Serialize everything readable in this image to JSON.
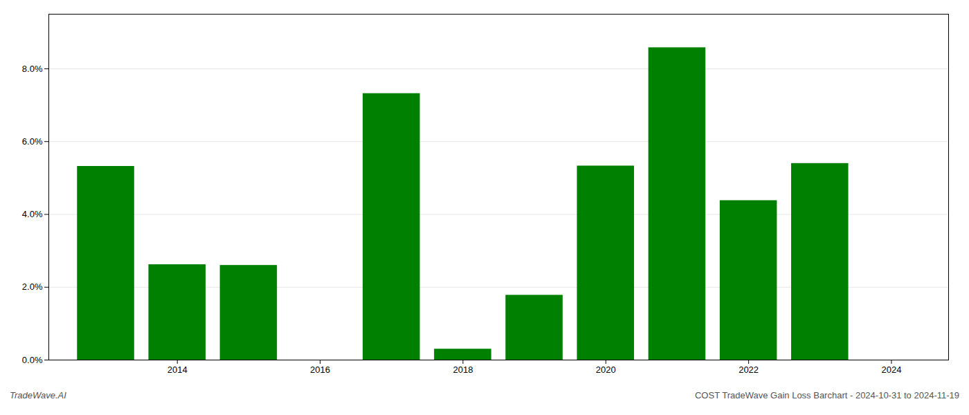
{
  "chart_data": {
    "type": "bar",
    "x": [
      2013,
      2014,
      2015,
      2016,
      2017,
      2018,
      2019,
      2020,
      2021,
      2022,
      2023
    ],
    "values": [
      0.0532,
      0.0262,
      0.026,
      0.0,
      0.0732,
      0.003,
      0.0178,
      0.0533,
      0.0858,
      0.0438,
      0.054
    ],
    "color": "#008000",
    "xlim": [
      2012.2,
      2024.8
    ],
    "xticks": [
      2014,
      2016,
      2018,
      2020,
      2022,
      2024
    ],
    "ylim": [
      0,
      0.095
    ],
    "yticks": [
      {
        "value": 0.0,
        "label": "0.0%"
      },
      {
        "value": 0.02,
        "label": "2.0%"
      },
      {
        "value": 0.04,
        "label": "4.0%"
      },
      {
        "value": 0.06,
        "label": "6.0%"
      },
      {
        "value": 0.08,
        "label": "8.0%"
      }
    ],
    "grid": true,
    "annotations": [
      "TradeWave.AI",
      "COST TradeWave Gain Loss Barchart - 2024-10-31 to 2024-11-19"
    ]
  }
}
